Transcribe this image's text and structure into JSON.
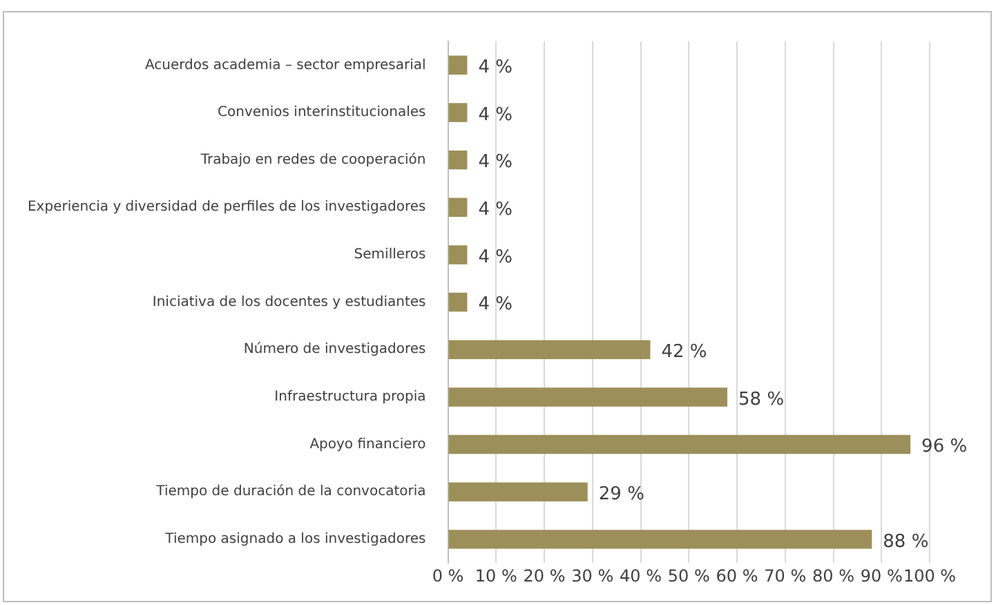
{
  "chart_data": {
    "type": "bar",
    "orientation": "horizontal",
    "categories": [
      "Acuerdos academia – sector empresarial",
      "Convenios interinstitucionales",
      "Trabajo en redes de cooperación",
      "Experiencia y diversidad de perfiles de los investigadores",
      "Semilleros",
      "Iniciativa de los docentes y estudiantes",
      "Número de investigadores",
      "Infraestructura propia",
      "Apoyo financiero",
      "Tiempo de duración de la convocatoria",
      "Tiempo asignado a los investigadores"
    ],
    "values": [
      4,
      4,
      4,
      4,
      4,
      4,
      42,
      58,
      96,
      29,
      88
    ],
    "value_labels": [
      "4 %",
      "4 %",
      "4 %",
      "4 %",
      "4 %",
      "4 %",
      "42 %",
      "58 %",
      "96 %",
      "29 %",
      "88 %"
    ],
    "color": "#9d8f5a",
    "xlim": [
      0,
      100
    ],
    "xticks": [
      {
        "value": 0,
        "label": "0 %"
      },
      {
        "value": 10,
        "label": "10 %"
      },
      {
        "value": 20,
        "label": "20 %"
      },
      {
        "value": 30,
        "label": "30 %"
      },
      {
        "value": 40,
        "label": "40 %"
      },
      {
        "value": 50,
        "label": "50 %"
      },
      {
        "value": 60,
        "label": "60 %"
      },
      {
        "value": 70,
        "label": "70 %"
      },
      {
        "value": 80,
        "label": "80 %"
      },
      {
        "value": 90,
        "label": "90 %"
      },
      {
        "value": 100,
        "label": "100 %"
      }
    ],
    "grid": "x",
    "legend": false
  }
}
